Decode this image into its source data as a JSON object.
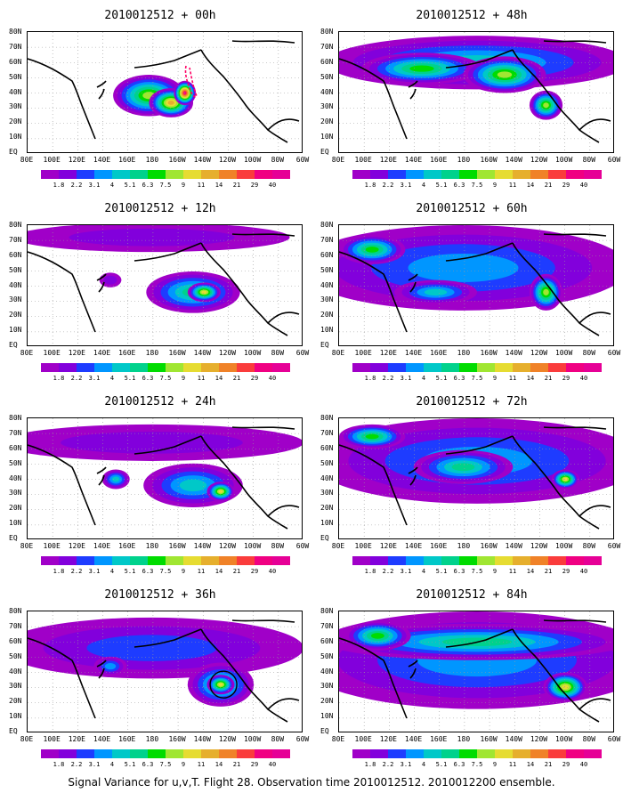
{
  "caption": "Signal Variance for u,v,T. Flight 28. Observation time 2010012512. 2010012200 ensemble.",
  "y_axis_labels": [
    "80N",
    "70N",
    "60N",
    "50N",
    "40N",
    "30N",
    "20N",
    "10N",
    "EQ"
  ],
  "x_axis_labels": [
    "80E",
    "100E",
    "120E",
    "140E",
    "160E",
    "180",
    "160W",
    "140W",
    "120W",
    "100W",
    "80W",
    "60W"
  ],
  "colorbar": {
    "labels": [
      "1.8",
      "2.2",
      "3.1",
      "4",
      "5.1",
      "6.3",
      "7.5",
      "9",
      "11",
      "14",
      "21",
      "29",
      "40"
    ],
    "colors": [
      "#a000c8",
      "#8200dc",
      "#1e3cff",
      "#0096ff",
      "#00c8c8",
      "#00d28c",
      "#00dc00",
      "#a0e632",
      "#e6dc32",
      "#e6af2d",
      "#f08228",
      "#fa3c3c",
      "#f00082"
    ]
  },
  "panels": [
    {
      "title": "2010012512 + 00h"
    },
    {
      "title": "2010012512 + 48h"
    },
    {
      "title": "2010012512 + 12h"
    },
    {
      "title": "2010012512 + 60h"
    },
    {
      "title": "2010012512 + 24h"
    },
    {
      "title": "2010012512 + 72h"
    },
    {
      "title": "2010012512 + 36h"
    },
    {
      "title": "2010012512 + 84h"
    }
  ],
  "chart_data": {
    "type": "heatmap",
    "title": "Signal Variance for u,v,T. Flight 28. Observation time 2010012512. 2010012200 ensemble.",
    "x_range": [
      "80E",
      "60W"
    ],
    "y_range": [
      "EQ",
      "80N"
    ],
    "grid": true,
    "colorbar_levels": [
      1.8,
      2.2,
      3.1,
      4,
      5.1,
      6.3,
      7.5,
      9,
      11,
      14,
      21,
      29,
      40
    ],
    "forecast_hours": [
      0,
      48,
      12,
      60,
      24,
      72,
      36,
      84
    ]
  }
}
